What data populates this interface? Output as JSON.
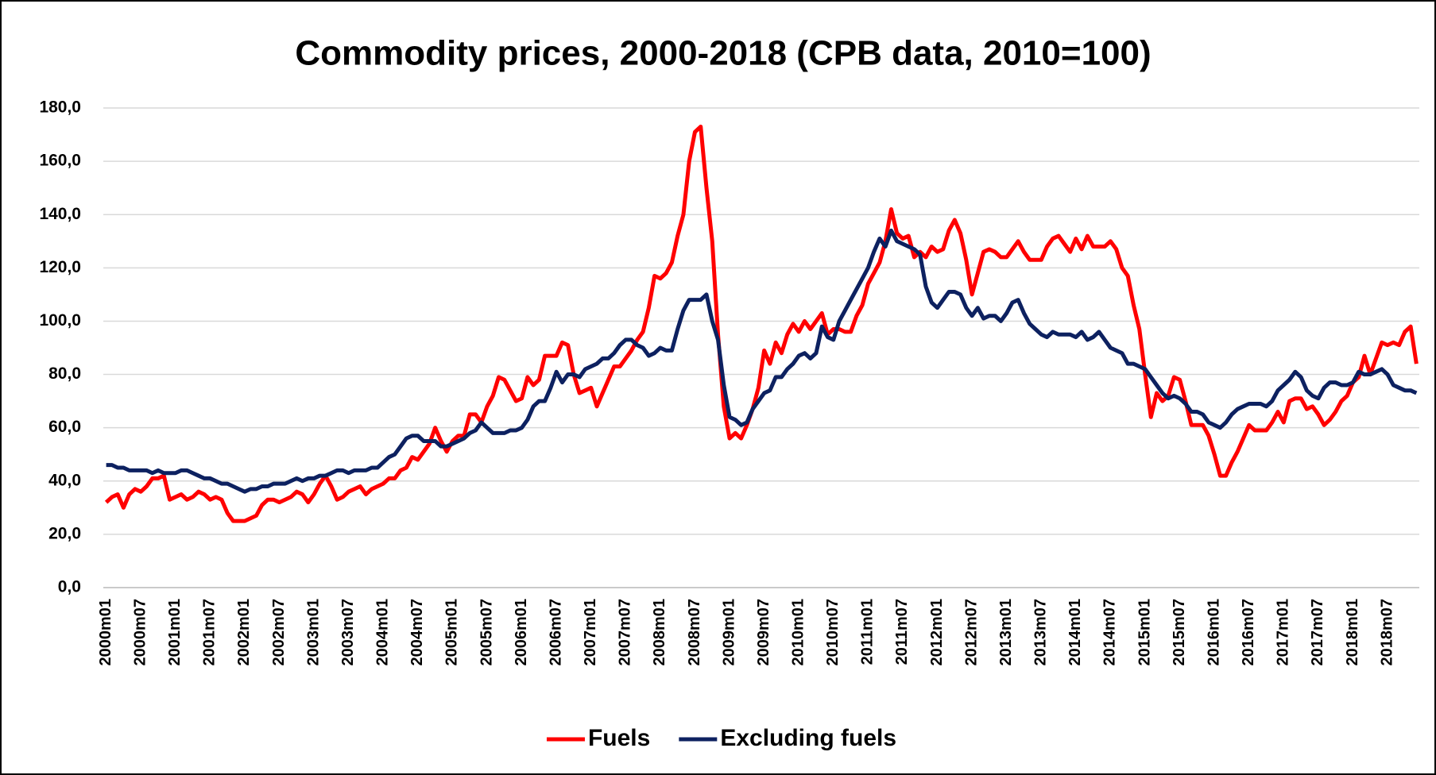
{
  "chart_data": {
    "type": "line",
    "title": "Commodity prices, 2000-2018 (CPB data, 2010=100)",
    "categories": [
      "2000m01",
      null,
      null,
      null,
      null,
      null,
      "2000m07",
      null,
      null,
      null,
      null,
      null,
      "2001m01",
      null,
      null,
      null,
      null,
      null,
      "2001m07",
      null,
      null,
      null,
      null,
      null,
      "2002m01",
      null,
      null,
      null,
      null,
      null,
      "2002m07",
      null,
      null,
      null,
      null,
      null,
      "2003m01",
      null,
      null,
      null,
      null,
      null,
      "2003m07",
      null,
      null,
      null,
      null,
      null,
      "2004m01",
      null,
      null,
      null,
      null,
      null,
      "2004m07",
      null,
      null,
      null,
      null,
      null,
      "2005m01",
      null,
      null,
      null,
      null,
      null,
      "2005m07",
      null,
      null,
      null,
      null,
      null,
      "2006m01",
      null,
      null,
      null,
      null,
      null,
      "2006m07",
      null,
      null,
      null,
      null,
      null,
      "2007m01",
      null,
      null,
      null,
      null,
      null,
      "2007m07",
      null,
      null,
      null,
      null,
      null,
      "2008m01",
      null,
      null,
      null,
      null,
      null,
      "2008m07",
      null,
      null,
      null,
      null,
      null,
      "2009m01",
      null,
      null,
      null,
      null,
      null,
      "2009m07",
      null,
      null,
      null,
      null,
      null,
      "2010m01",
      null,
      null,
      null,
      null,
      null,
      "2010m07",
      null,
      null,
      null,
      null,
      null,
      "2011m01",
      null,
      null,
      null,
      null,
      null,
      "2011m07",
      null,
      null,
      null,
      null,
      null,
      "2012m01",
      null,
      null,
      null,
      null,
      null,
      "2012m07",
      null,
      null,
      null,
      null,
      null,
      "2013m01",
      null,
      null,
      null,
      null,
      null,
      "2013m07",
      null,
      null,
      null,
      null,
      null,
      "2014m01",
      null,
      null,
      null,
      null,
      null,
      "2014m07",
      null,
      null,
      null,
      null,
      null,
      "2015m01",
      null,
      null,
      null,
      null,
      null,
      "2015m07",
      null,
      null,
      null,
      null,
      null,
      "2016m01",
      null,
      null,
      null,
      null,
      null,
      "2016m07",
      null,
      null,
      null,
      null,
      null,
      "2017m01",
      null,
      null,
      null,
      null,
      null,
      "2017m07",
      null,
      null,
      null,
      null,
      null,
      "2018m01",
      null,
      null,
      null,
      null,
      null,
      "2018m07",
      null,
      null,
      null,
      null,
      null
    ],
    "series": [
      {
        "name": "Fuels",
        "color": "#ff0000",
        "values": [
          32,
          34,
          35,
          30,
          35,
          37,
          36,
          38,
          41,
          41,
          42,
          33,
          34,
          35,
          33,
          34,
          36,
          35,
          33,
          34,
          33,
          28,
          25,
          25,
          25,
          26,
          27,
          31,
          33,
          33,
          32,
          33,
          34,
          36,
          35,
          32,
          35,
          39,
          42,
          38,
          33,
          34,
          36,
          37,
          38,
          35,
          37,
          38,
          39,
          41,
          41,
          44,
          45,
          49,
          48,
          51,
          54,
          60,
          55,
          51,
          55,
          57,
          57,
          65,
          65,
          62,
          68,
          72,
          79,
          78,
          74,
          70,
          71,
          79,
          76,
          78,
          87,
          87,
          87,
          92,
          91,
          80,
          73,
          74,
          75,
          68,
          73,
          78,
          83,
          83,
          86,
          89,
          93,
          96,
          105,
          117,
          116,
          118,
          122,
          132,
          140,
          160,
          171,
          173,
          150,
          130,
          95,
          68,
          56,
          58,
          56,
          61,
          67,
          75,
          89,
          84,
          92,
          88,
          95,
          99,
          96,
          100,
          97,
          100,
          103,
          95,
          97,
          97,
          96,
          96,
          102,
          106,
          114,
          118,
          122,
          130,
          142,
          133,
          131,
          132,
          124,
          126,
          124,
          128,
          126,
          127,
          134,
          138,
          133,
          123,
          110,
          118,
          126,
          127,
          126,
          124,
          124,
          127,
          130,
          126,
          123,
          123,
          123,
          128,
          131,
          132,
          129,
          126,
          131,
          127,
          132,
          128,
          128,
          128,
          130,
          127,
          120,
          117,
          106,
          97,
          80,
          64,
          73,
          70,
          72,
          79,
          78,
          70,
          61,
          61,
          61,
          57,
          50,
          42,
          42,
          47,
          51,
          56,
          61,
          59,
          59,
          59,
          62,
          66,
          62,
          70,
          71,
          71,
          67,
          68,
          65,
          61,
          63,
          66,
          70,
          72,
          77,
          79,
          87,
          80,
          86,
          92,
          91,
          92,
          91,
          96,
          98,
          84
        ]
      },
      {
        "name": "Excluding fuels",
        "color": "#0d2160",
        "values": [
          46,
          46,
          45,
          45,
          44,
          44,
          44,
          44,
          43,
          44,
          43,
          43,
          43,
          44,
          44,
          43,
          42,
          41,
          41,
          40,
          39,
          39,
          38,
          37,
          36,
          37,
          37,
          38,
          38,
          39,
          39,
          39,
          40,
          41,
          40,
          41,
          41,
          42,
          42,
          43,
          44,
          44,
          43,
          44,
          44,
          44,
          45,
          45,
          47,
          49,
          50,
          53,
          56,
          57,
          57,
          55,
          55,
          55,
          53,
          53,
          54,
          55,
          56,
          58,
          59,
          62,
          60,
          58,
          58,
          58,
          59,
          59,
          60,
          63,
          68,
          70,
          70,
          75,
          81,
          77,
          80,
          80,
          79,
          82,
          83,
          84,
          86,
          86,
          88,
          91,
          93,
          93,
          91,
          90,
          87,
          88,
          90,
          89,
          89,
          97,
          104,
          108,
          108,
          108,
          110,
          100,
          93,
          76,
          64,
          63,
          61,
          62,
          67,
          70,
          73,
          74,
          79,
          79,
          82,
          84,
          87,
          88,
          86,
          88,
          98,
          94,
          93,
          100,
          104,
          108,
          112,
          116,
          120,
          126,
          131,
          128,
          134,
          130,
          129,
          128,
          127,
          125,
          113,
          107,
          105,
          108,
          111,
          111,
          110,
          105,
          102,
          105,
          101,
          102,
          102,
          100,
          103,
          107,
          108,
          103,
          99,
          97,
          95,
          94,
          96,
          95,
          95,
          95,
          94,
          96,
          93,
          94,
          96,
          93,
          90,
          89,
          88,
          84,
          84,
          83,
          82,
          79,
          76,
          73,
          71,
          72,
          71,
          69,
          66,
          66,
          65,
          62,
          61,
          60,
          62,
          65,
          67,
          68,
          69,
          69,
          69,
          68,
          70,
          74,
          76,
          78,
          81,
          79,
          74,
          72,
          71,
          75,
          77,
          77,
          76,
          76,
          77,
          81,
          80,
          80,
          81,
          82,
          80,
          76,
          75,
          74,
          74,
          73
        ]
      }
    ],
    "ylim": [
      0,
      180
    ],
    "yticks": [
      {
        "value": 0,
        "label": "0,0"
      },
      {
        "value": 20,
        "label": "20,0"
      },
      {
        "value": 40,
        "label": "40,0"
      },
      {
        "value": 60,
        "label": "60,0"
      },
      {
        "value": 80,
        "label": "80,0"
      },
      {
        "value": 100,
        "label": "100,0"
      },
      {
        "value": 120,
        "label": "120,0"
      },
      {
        "value": 140,
        "label": "140,0"
      },
      {
        "value": 160,
        "label": "160,0"
      },
      {
        "value": 180,
        "label": "180,0"
      }
    ],
    "grid": true,
    "legend": "bottom"
  }
}
